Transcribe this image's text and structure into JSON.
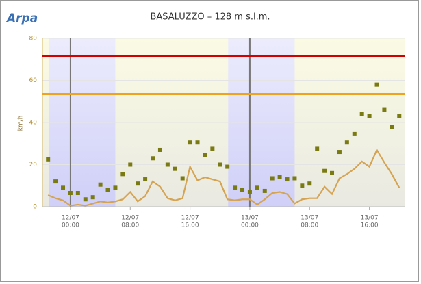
{
  "logo": "Arpa",
  "chart_data": {
    "type": "scatter-line",
    "title": "BASALUZZO – 128 m s.l.m.",
    "y_label": "km/h",
    "x": [
      -3,
      -2,
      -1,
      0,
      1,
      2,
      3,
      4,
      5,
      6,
      7,
      8,
      9,
      10,
      11,
      12,
      13,
      14,
      15,
      16,
      17,
      18,
      19,
      20,
      21,
      22,
      23,
      24,
      25,
      26,
      27,
      28,
      29,
      30,
      31,
      32,
      33,
      34,
      35,
      36,
      37,
      38,
      39,
      40,
      41,
      42,
      43,
      44
    ],
    "series": [
      {
        "color": "#7a7a12",
        "marker": "square",
        "values": [
          22.5,
          12,
          9,
          6.5,
          6.5,
          3.5,
          4.5,
          10.5,
          8,
          9,
          15.5,
          20,
          11,
          13,
          23,
          27,
          20,
          18,
          13.5,
          30.5,
          30.5,
          24.5,
          27.5,
          20,
          19,
          9,
          8,
          7,
          9,
          7.5,
          13.5,
          14,
          13,
          13.5,
          10,
          11,
          27.5,
          17,
          16,
          26,
          30.5,
          34.5,
          44,
          43,
          58,
          46,
          38,
          43
        ]
      },
      {
        "color": "#d4a452",
        "marker": "line",
        "values": [
          5.5,
          4,
          3,
          0.5,
          1,
          0.5,
          1.5,
          2.5,
          2,
          2.5,
          3.5,
          7,
          2.5,
          5,
          12,
          9.5,
          4,
          3,
          4,
          19,
          12.5,
          14,
          13,
          12,
          3.5,
          3,
          3.5,
          3.5,
          1,
          3.5,
          6.5,
          7,
          6,
          1.5,
          3.5,
          4,
          4,
          9.5,
          6,
          13.5,
          15.5,
          18,
          21.5,
          19,
          27,
          21,
          15.5,
          9
        ]
      }
    ],
    "xlim": [
      -3.75,
      44.8
    ],
    "xticks": [
      {
        "value": 0,
        "date": "12/07",
        "label": "00:00"
      },
      {
        "value": 8,
        "date": "12/07",
        "label": "08:00"
      },
      {
        "value": 16,
        "date": "12/07",
        "label": "16:00"
      },
      {
        "value": 24,
        "date": "13/07",
        "label": "00:00"
      },
      {
        "value": 32,
        "date": "13/07",
        "label": "08:00"
      },
      {
        "value": 40,
        "date": "13/07",
        "label": "16:00"
      }
    ],
    "ylim": [
      0,
      80
    ],
    "yticks": [
      0,
      20,
      40,
      60,
      80
    ],
    "hlines": [
      {
        "value": 71.5,
        "color": "#d40000"
      },
      {
        "value": 53.5,
        "color": "#eea21e"
      }
    ],
    "vlines": [
      {
        "value": 0,
        "color": "#777777"
      },
      {
        "value": 24,
        "color": "#777777"
      }
    ],
    "night_bands": [
      [
        -2.85,
        6
      ],
      [
        21.1,
        30
      ]
    ]
  }
}
